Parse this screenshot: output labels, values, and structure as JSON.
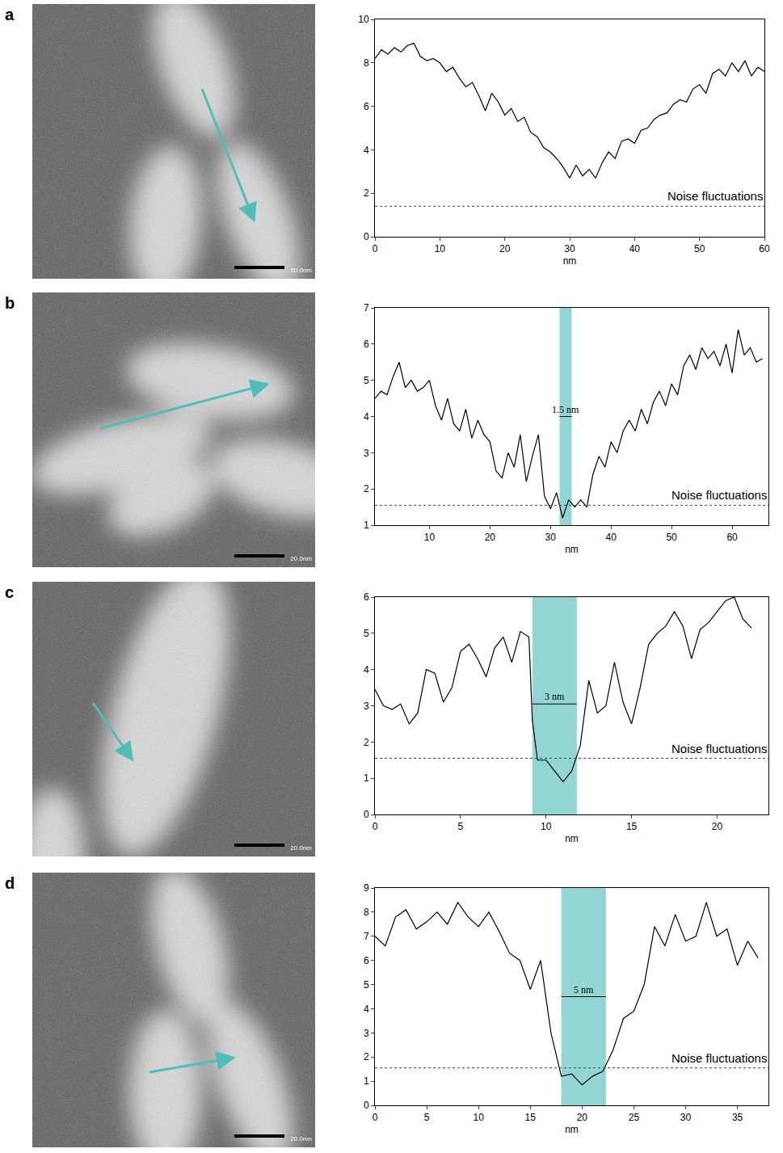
{
  "chart_data": [
    {
      "panel": "a",
      "type": "line",
      "color": "#000000",
      "xlabel": "nm",
      "x": [
        0,
        1,
        2,
        3,
        4,
        5,
        6,
        7,
        8,
        9,
        10,
        11,
        12,
        13,
        14,
        15,
        16,
        17,
        18,
        19,
        20,
        21,
        22,
        23,
        24,
        25,
        26,
        27,
        28,
        29,
        30,
        31,
        32,
        33,
        34,
        35,
        36,
        37,
        38,
        39,
        40,
        41,
        42,
        43,
        44,
        45,
        46,
        47,
        48,
        49,
        50,
        51,
        52,
        53,
        54,
        55,
        56,
        57,
        58,
        59,
        60
      ],
      "values": [
        8.2,
        8.6,
        8.4,
        8.7,
        8.5,
        8.8,
        8.9,
        8.3,
        8.1,
        8.2,
        8.0,
        7.6,
        7.8,
        7.3,
        6.9,
        7.1,
        6.5,
        5.8,
        6.6,
        6.2,
        5.6,
        5.9,
        5.3,
        5.5,
        4.8,
        4.6,
        4.1,
        3.9,
        3.6,
        3.2,
        2.7,
        3.3,
        2.8,
        3.1,
        2.7,
        3.4,
        3.9,
        3.6,
        4.4,
        4.5,
        4.3,
        4.9,
        5.0,
        5.4,
        5.6,
        5.7,
        6.1,
        6.3,
        6.2,
        6.8,
        7.0,
        6.6,
        7.5,
        7.7,
        7.4,
        8.0,
        7.6,
        8.1,
        7.4,
        7.8,
        7.6
      ],
      "xlim": [
        0,
        60
      ],
      "xticks": [
        0,
        10,
        20,
        30,
        40,
        50,
        60
      ],
      "ylim": [
        0,
        10
      ],
      "yticks": [
        0,
        2,
        4,
        6,
        8,
        10
      ],
      "noise_level": 1.4,
      "noise_label": "Noise fluctuations",
      "image": {
        "arrow_color": "#4fbdb8",
        "scale_label": "20.0nm"
      }
    },
    {
      "panel": "b",
      "type": "line",
      "color": "#000000",
      "xlabel": "nm",
      "x": [
        1,
        2,
        3,
        4,
        5,
        6,
        7,
        8,
        9,
        10,
        11,
        12,
        13,
        14,
        15,
        16,
        17,
        18,
        19,
        20,
        21,
        22,
        23,
        24,
        25,
        26,
        27,
        28,
        29,
        30,
        31,
        32,
        33,
        34,
        35,
        36,
        37,
        38,
        39,
        40,
        41,
        42,
        43,
        44,
        45,
        46,
        47,
        48,
        49,
        50,
        51,
        52,
        53,
        54,
        55,
        56,
        57,
        58,
        59,
        60,
        61,
        62,
        63,
        64,
        65
      ],
      "values": [
        4.5,
        4.7,
        4.6,
        5.1,
        5.5,
        4.8,
        5.0,
        4.7,
        4.8,
        5.0,
        4.3,
        3.9,
        4.5,
        3.8,
        3.6,
        4.2,
        3.4,
        3.9,
        3.5,
        3.3,
        2.5,
        2.3,
        3.0,
        2.6,
        3.5,
        2.2,
        2.9,
        3.5,
        1.8,
        1.45,
        1.9,
        1.2,
        1.7,
        1.5,
        1.7,
        1.5,
        2.4,
        2.9,
        2.6,
        3.3,
        3.0,
        3.6,
        3.9,
        3.6,
        4.2,
        3.8,
        4.4,
        4.7,
        4.3,
        4.9,
        4.6,
        5.4,
        5.7,
        5.3,
        5.9,
        5.6,
        5.8,
        5.4,
        6.0,
        5.2,
        6.4,
        5.7,
        5.9,
        5.5,
        5.6
      ],
      "xlim": [
        1,
        66
      ],
      "xticks": [
        10,
        20,
        30,
        40,
        50,
        60
      ],
      "ylim": [
        1,
        7
      ],
      "yticks": [
        1,
        2,
        3,
        4,
        5,
        6,
        7
      ],
      "noise_level": 1.55,
      "noise_label": "Noise fluctuations",
      "band": [
        31.5,
        33.5
      ],
      "band_label": "1.5 nm",
      "band_label_y": 4.0,
      "band_color": "#7fcfcb",
      "image": {
        "arrow_color": "#4fbdb8",
        "scale_label": "20.0nm"
      }
    },
    {
      "panel": "c",
      "type": "line",
      "color": "#000000",
      "xlabel": "nm",
      "x": [
        0,
        0.5,
        1,
        1.5,
        2,
        2.5,
        3,
        3.5,
        4,
        4.5,
        5,
        5.5,
        6,
        6.5,
        7,
        7.5,
        8,
        8.5,
        9,
        9.2,
        9.5,
        10,
        10.5,
        11,
        11.5,
        12,
        12.5,
        13,
        13.5,
        14,
        14.5,
        15,
        15.5,
        16,
        16.5,
        17,
        17.5,
        18,
        18.5,
        19,
        19.5,
        20,
        20.5,
        21,
        21.5,
        22
      ],
      "values": [
        3.45,
        3.0,
        2.9,
        3.05,
        2.5,
        2.8,
        4.0,
        3.9,
        3.1,
        3.5,
        4.5,
        4.7,
        4.3,
        3.8,
        4.6,
        4.9,
        4.2,
        5.05,
        4.9,
        2.6,
        1.5,
        1.5,
        1.2,
        0.9,
        1.2,
        1.9,
        3.7,
        2.8,
        3.0,
        4.2,
        3.1,
        2.5,
        3.5,
        4.7,
        5.0,
        5.2,
        5.6,
        5.2,
        4.3,
        5.1,
        5.3,
        5.6,
        5.9,
        6.0,
        5.4,
        5.15
      ],
      "xlim": [
        0,
        23
      ],
      "xticks": [
        0,
        5,
        10,
        15,
        20
      ],
      "ylim": [
        0,
        6
      ],
      "yticks": [
        0,
        1,
        2,
        3,
        4,
        5,
        6
      ],
      "noise_level": 1.55,
      "noise_label": "Noise fluctuations",
      "band": [
        9.2,
        11.8
      ],
      "band_label": "3 nm",
      "band_label_y": 3.05,
      "band_color": "#7fcfcb",
      "image": {
        "arrow_color": "#4fbdb8",
        "scale_label": "20.0nm"
      }
    },
    {
      "panel": "d",
      "type": "line",
      "color": "#000000",
      "xlabel": "nm",
      "x": [
        0,
        1,
        2,
        3,
        4,
        5,
        6,
        7,
        8,
        9,
        10,
        11,
        12,
        13,
        14,
        15,
        16,
        17,
        18,
        19,
        20,
        21,
        22,
        23,
        24,
        25,
        26,
        27,
        28,
        29,
        30,
        31,
        32,
        33,
        34,
        35,
        36,
        37
      ],
      "values": [
        7.0,
        6.6,
        7.8,
        8.1,
        7.3,
        7.6,
        8.0,
        7.5,
        8.4,
        7.8,
        7.4,
        8.0,
        7.2,
        6.3,
        6.0,
        4.8,
        6.0,
        3.0,
        1.2,
        1.3,
        0.85,
        1.2,
        1.4,
        2.3,
        3.6,
        3.9,
        5.0,
        7.4,
        6.6,
        7.9,
        6.8,
        7.0,
        8.4,
        7.0,
        7.3,
        5.8,
        6.8,
        6.1
      ],
      "xlim": [
        0,
        38
      ],
      "xticks": [
        0,
        5,
        10,
        15,
        20,
        25,
        30,
        35
      ],
      "ylim": [
        0,
        9
      ],
      "yticks": [
        0,
        1,
        2,
        3,
        4,
        5,
        6,
        7,
        8,
        9
      ],
      "noise_level": 1.55,
      "noise_label": "Noise fluctuations",
      "band": [
        18,
        22.3
      ],
      "band_label": "5 nm",
      "band_label_y": 4.5,
      "band_color": "#7fcfcb",
      "image": {
        "arrow_color": "#4fbdb8",
        "scale_label": "20.0nm"
      }
    }
  ]
}
